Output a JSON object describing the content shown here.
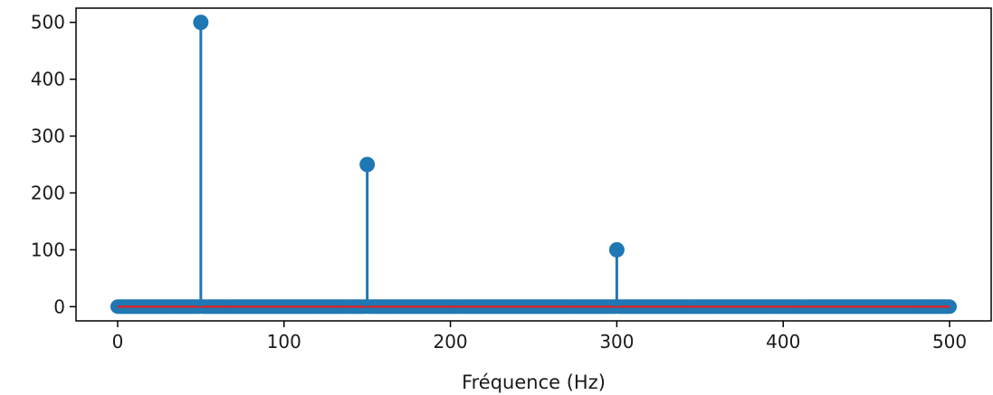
{
  "chart_data": {
    "type": "stem",
    "title": "",
    "xlabel": "Fréquence (Hz)",
    "ylabel": "",
    "xlim": [
      -25,
      525
    ],
    "ylim": [
      -25,
      525
    ],
    "x_ticks": [
      0,
      100,
      200,
      300,
      400,
      500
    ],
    "y_ticks": [
      0,
      100,
      200,
      300,
      400,
      500
    ],
    "grid": false,
    "baseline": 0,
    "baseline_color": "#d62728",
    "stem_color": "#1f77b4",
    "x_range": [
      0,
      500
    ],
    "x_step": 1,
    "peaks": [
      {
        "x": 50,
        "y": 500
      },
      {
        "x": 150,
        "y": 250
      },
      {
        "x": 300,
        "y": 100
      }
    ]
  }
}
